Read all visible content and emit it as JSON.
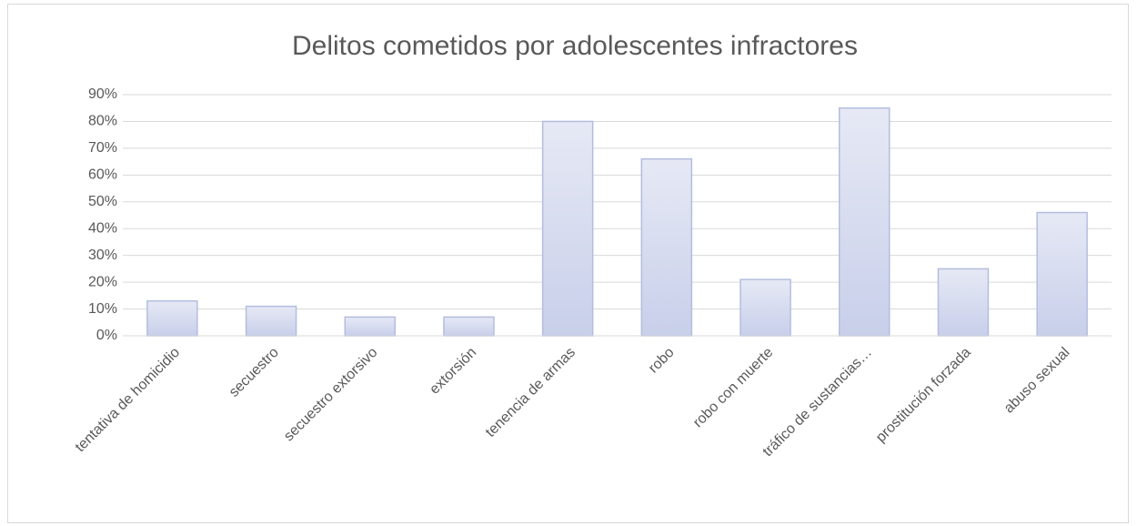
{
  "chart_data": {
    "type": "bar",
    "title": "Delitos cometidos por adolescentes infractores",
    "categories": [
      "tentativa de homicidio",
      "secuestro",
      "secuestro extorsivo",
      "extorsión",
      "tenencia de armas",
      "robo",
      "robo con muerte",
      "tráfico de sustancias…",
      "prostitución forzada",
      "abuso sexual"
    ],
    "values": [
      13,
      11,
      7,
      7,
      80,
      66,
      21,
      85,
      25,
      46
    ],
    "color": "#b4bde0",
    "ylim": [
      0,
      90
    ],
    "yticks": [
      {
        "value": 0,
        "label": "0%"
      },
      {
        "value": 10,
        "label": "10%"
      },
      {
        "value": 20,
        "label": "20%"
      },
      {
        "value": 30,
        "label": "30%"
      },
      {
        "value": 40,
        "label": "40%"
      },
      {
        "value": 50,
        "label": "50%"
      },
      {
        "value": 60,
        "label": "60%"
      },
      {
        "value": 70,
        "label": "70%"
      },
      {
        "value": 80,
        "label": "80%"
      },
      {
        "value": 90,
        "label": "90%"
      }
    ],
    "grid": true
  }
}
